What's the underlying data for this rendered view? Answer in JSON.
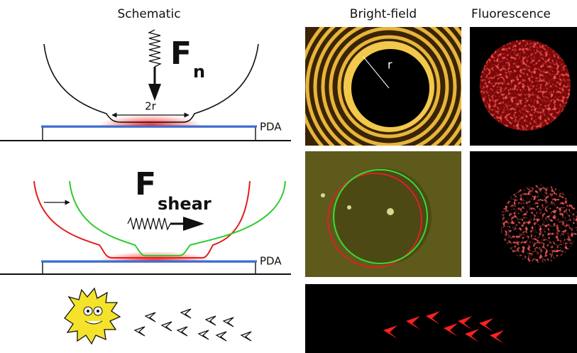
{
  "headers": {
    "schematic": "Schematic",
    "bright_field": "Bright-field",
    "fluorescence": "Fluorescence"
  },
  "panels": [
    {
      "force_symbol": "F",
      "force_subscript": "n",
      "contact_label": "2r",
      "substrate_label": "PDA",
      "image_label": "r"
    },
    {
      "force_symbol": "F",
      "force_subscript": "shear",
      "substrate_label": "PDA"
    }
  ]
}
